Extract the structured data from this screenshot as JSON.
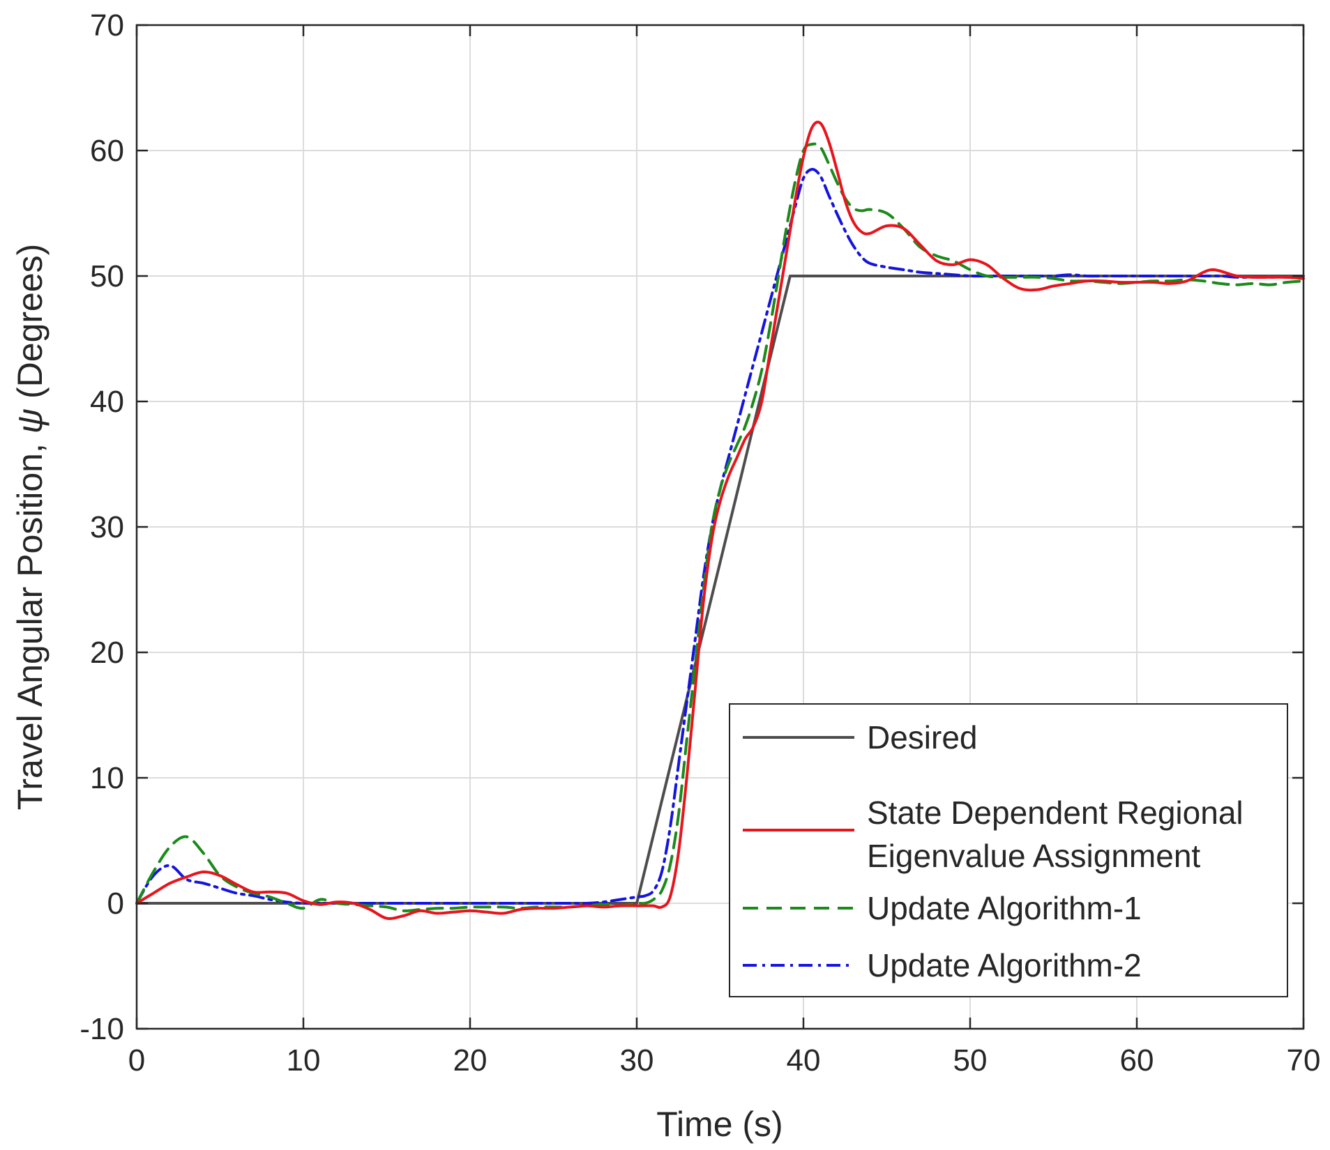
{
  "chart_data": {
    "type": "line",
    "title": "",
    "xlabel": "Time (s)",
    "ylabel_prefix": "Travel Angular Position, ",
    "ylabel_symbol": "ψ",
    "ylabel_suffix": " (Degrees)",
    "xlim": [
      0,
      70
    ],
    "ylim": [
      -10,
      70
    ],
    "grid": true,
    "legend_position": "bottom-right",
    "x_ticks": [
      0,
      10,
      20,
      30,
      40,
      50,
      60,
      70
    ],
    "y_ticks": [
      -10,
      0,
      10,
      20,
      30,
      40,
      50,
      60,
      70
    ],
    "x_tick_labels": [
      "0",
      "10",
      "20",
      "30",
      "40",
      "50",
      "60",
      "70"
    ],
    "y_tick_labels": [
      "-10",
      "0",
      "10",
      "20",
      "30",
      "40",
      "50",
      "60",
      "70"
    ],
    "series": [
      {
        "name": "Desired",
        "legend_lines": [
          "Desired"
        ],
        "color": "#4d4d4d",
        "dash": "solid",
        "x": [
          0,
          30,
          39.2,
          70
        ],
        "y": [
          0,
          0,
          50,
          50
        ]
      },
      {
        "name": "State Dependent Regional Eigenvalue Assignment",
        "legend_lines": [
          "State Dependent Regional",
          "Eigenvalue Assignment"
        ],
        "color": "#e8141c",
        "dash": "solid",
        "x": [
          0,
          1,
          2,
          3,
          4,
          5,
          6,
          7,
          8,
          9,
          10,
          11,
          12,
          13,
          14,
          15,
          16,
          17,
          18,
          19,
          20,
          21,
          22,
          23,
          24,
          25,
          26,
          27,
          28,
          29,
          30,
          30.5,
          31,
          31.5,
          32,
          32.5,
          33,
          33.5,
          34,
          34.5,
          35,
          35.5,
          36,
          36.5,
          37,
          37.5,
          38,
          38.5,
          39,
          39.5,
          40,
          40.5,
          41,
          41.5,
          42,
          42.5,
          43,
          43.5,
          44,
          45,
          46,
          47,
          48,
          49,
          50,
          51,
          52,
          53,
          54,
          55,
          56,
          57,
          58,
          59,
          60,
          61,
          62,
          63,
          64,
          64.5,
          65,
          66,
          67,
          68,
          69,
          70
        ],
        "y": [
          0,
          0.8,
          1.6,
          2.1,
          2.5,
          2.2,
          1.5,
          0.9,
          0.9,
          0.8,
          0.2,
          -0.1,
          0.1,
          0.0,
          -0.5,
          -1.2,
          -1.0,
          -0.6,
          -0.8,
          -0.7,
          -0.6,
          -0.7,
          -0.8,
          -0.5,
          -0.4,
          -0.4,
          -0.3,
          -0.2,
          -0.3,
          -0.2,
          -0.2,
          -0.2,
          -0.2,
          -0.3,
          0.5,
          4,
          10,
          17,
          24,
          29,
          32,
          34,
          35.5,
          37,
          38,
          40,
          44,
          48,
          52,
          56,
          59.5,
          61.8,
          62.2,
          60.8,
          58.5,
          56,
          54.3,
          53.5,
          53.4,
          54,
          53.8,
          52.5,
          51.2,
          50.9,
          51.3,
          50.9,
          49.8,
          49.0,
          48.9,
          49.2,
          49.4,
          49.6,
          49.6,
          49.5,
          49.5,
          49.5,
          49.4,
          49.6,
          50.3,
          50.5,
          50.4,
          50.0,
          49.9,
          49.9,
          49.9,
          49.8
        ]
      },
      {
        "name": "Update Algorithm-1",
        "legend_lines": [
          "Update Algorithm-1"
        ],
        "color": "#1a8a1a",
        "dash": "dashed",
        "x": [
          0,
          1,
          2,
          3,
          4,
          5,
          6,
          7,
          8,
          9,
          10,
          11,
          12,
          13,
          14,
          15,
          16,
          17,
          18,
          19,
          20,
          21,
          22,
          23,
          24,
          25,
          26,
          27,
          28,
          29,
          30,
          30.5,
          31,
          31.5,
          32,
          32.5,
          33,
          33.5,
          34,
          34.5,
          35,
          35.5,
          36,
          36.5,
          37,
          37.5,
          38,
          38.5,
          39,
          39.5,
          40,
          40.5,
          41,
          41.5,
          42,
          42.5,
          43,
          43.5,
          44,
          45,
          46,
          47,
          48,
          49,
          50,
          51,
          52,
          53,
          54,
          55,
          56,
          57,
          58,
          59,
          60,
          61,
          62,
          63,
          64,
          65,
          66,
          67,
          68,
          69,
          70
        ],
        "y": [
          0,
          2.5,
          4.5,
          5.3,
          4.0,
          2.2,
          1.3,
          0.8,
          0.5,
          0.0,
          -0.4,
          0.3,
          0.0,
          -0.1,
          -0.2,
          -0.3,
          -0.6,
          -0.5,
          -0.4,
          -0.4,
          -0.3,
          -0.3,
          -0.3,
          -0.4,
          -0.3,
          -0.3,
          -0.3,
          -0.2,
          -0.1,
          -0.2,
          0.0,
          0.0,
          0.3,
          1.0,
          3,
          7,
          13,
          19,
          25,
          30,
          33,
          35,
          36.5,
          38,
          40,
          42.5,
          46,
          50,
          54,
          57.5,
          60,
          60.5,
          60.3,
          59,
          57.5,
          56.2,
          55.4,
          55.2,
          55.3,
          55.0,
          53.8,
          52.3,
          51.6,
          51.2,
          50.5,
          50.0,
          49.9,
          49.9,
          49.9,
          49.8,
          49.6,
          49.6,
          49.5,
          49.4,
          49.5,
          49.6,
          49.6,
          49.7,
          49.6,
          49.4,
          49.3,
          49.4,
          49.3,
          49.5,
          49.6
        ]
      },
      {
        "name": "Update Algorithm-2",
        "legend_lines": [
          "Update Algorithm-2"
        ],
        "color": "#1414e0",
        "dash": "dashdot",
        "x": [
          0,
          1,
          2,
          3,
          4,
          5,
          6,
          7,
          8,
          9,
          10,
          11,
          12,
          13,
          14,
          15,
          16,
          17,
          18,
          19,
          20,
          21,
          22,
          23,
          24,
          25,
          26,
          27,
          28,
          29,
          30,
          30.5,
          31,
          31.5,
          32,
          32.5,
          33,
          33.5,
          34,
          34.5,
          35,
          35.5,
          36,
          36.5,
          37,
          37.5,
          38,
          38.5,
          39,
          39.5,
          40,
          40.5,
          41,
          41.5,
          42,
          42.5,
          43,
          43.5,
          44,
          45,
          46,
          47,
          48,
          49,
          50,
          51,
          52,
          53,
          54,
          55,
          56,
          57,
          58,
          59,
          60,
          61,
          62,
          63,
          64,
          65,
          66,
          67,
          68,
          69,
          70
        ],
        "y": [
          0,
          2.2,
          3.0,
          1.9,
          1.6,
          1.2,
          0.8,
          0.6,
          0.3,
          0.1,
          0.0,
          0.0,
          0.0,
          0.0,
          0.0,
          0.0,
          0.0,
          0.0,
          0.0,
          0.0,
          0.0,
          0.0,
          0.0,
          0.0,
          0.0,
          0.0,
          0.0,
          0.0,
          0.1,
          0.3,
          0.5,
          0.6,
          1.0,
          2.5,
          6,
          11,
          16,
          21,
          26,
          30,
          33,
          35.5,
          38,
          40.5,
          43,
          45.5,
          48,
          50.5,
          53,
          55.5,
          57.8,
          58.5,
          58.0,
          56.5,
          55.0,
          53.6,
          52.4,
          51.5,
          51.0,
          50.7,
          50.5,
          50.3,
          50.2,
          50.1,
          50.0,
          50.0,
          50.0,
          50.0,
          50.0,
          50.0,
          50.1,
          50.0,
          50.0,
          50.0,
          50.0,
          50.0,
          50.0,
          50.0,
          50.0,
          50.0,
          49.9,
          49.9,
          49.9,
          49.9,
          49.8
        ]
      }
    ]
  }
}
